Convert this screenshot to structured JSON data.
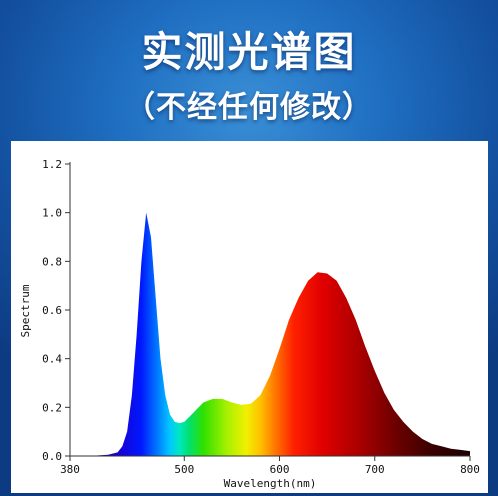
{
  "header": {
    "title": "实测光谱图",
    "subtitle": "（不经任何修改）"
  },
  "chart_data": {
    "type": "area",
    "xlabel": "Wavelength(nm)",
    "ylabel": "Spectrum",
    "xlim": [
      380,
      800
    ],
    "ylim": [
      0,
      1.2
    ],
    "x_ticks": [
      380,
      500,
      600,
      700,
      800
    ],
    "y_ticks": [
      0.0,
      0.2,
      0.4,
      0.6,
      0.8,
      1.0,
      1.2
    ],
    "x_tick_labels": [
      "380",
      "500",
      "600",
      "700",
      "800"
    ],
    "y_tick_labels": [
      "0.0",
      "0.2",
      "0.4",
      "0.6",
      "0.8",
      "1.0",
      "1.2"
    ],
    "fill": "wavelength-color-gradient",
    "series": [
      {
        "x": [
          380,
          400,
          420,
          430,
          435,
          440,
          445,
          450,
          455,
          460,
          465,
          470,
          475,
          480,
          485,
          490,
          495,
          500,
          505,
          510,
          515,
          520,
          530,
          540,
          550,
          560,
          570,
          580,
          590,
          600,
          610,
          620,
          630,
          640,
          650,
          660,
          670,
          680,
          690,
          700,
          710,
          720,
          730,
          740,
          750,
          760,
          770,
          780,
          790,
          800
        ],
        "y": [
          0.0,
          0.0,
          0.005,
          0.015,
          0.04,
          0.1,
          0.25,
          0.5,
          0.8,
          1.0,
          0.9,
          0.65,
          0.4,
          0.25,
          0.17,
          0.14,
          0.135,
          0.14,
          0.16,
          0.18,
          0.2,
          0.22,
          0.235,
          0.235,
          0.22,
          0.21,
          0.215,
          0.25,
          0.33,
          0.44,
          0.56,
          0.65,
          0.72,
          0.755,
          0.75,
          0.72,
          0.65,
          0.56,
          0.45,
          0.35,
          0.26,
          0.19,
          0.14,
          0.1,
          0.07,
          0.05,
          0.04,
          0.03,
          0.025,
          0.02
        ]
      }
    ]
  }
}
